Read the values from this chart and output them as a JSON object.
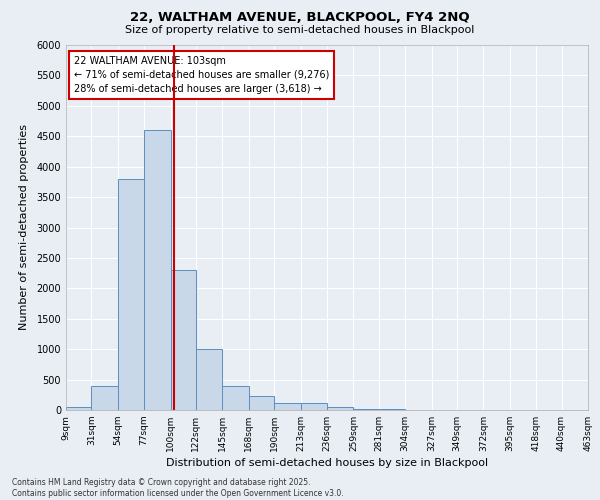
{
  "title1": "22, WALTHAM AVENUE, BLACKPOOL, FY4 2NQ",
  "title2": "Size of property relative to semi-detached houses in Blackpool",
  "xlabel": "Distribution of semi-detached houses by size in Blackpool",
  "ylabel": "Number of semi-detached properties",
  "annotation_title": "22 WALTHAM AVENUE: 103sqm",
  "annotation_line1": "← 71% of semi-detached houses are smaller (9,276)",
  "annotation_line2": "28% of semi-detached houses are larger (3,618) →",
  "property_size": 103,
  "bin_labels": [
    "9sqm",
    "31sqm",
    "54sqm",
    "77sqm",
    "100sqm",
    "122sqm",
    "145sqm",
    "168sqm",
    "190sqm",
    "213sqm",
    "236sqm",
    "259sqm",
    "281sqm",
    "304sqm",
    "327sqm",
    "349sqm",
    "372sqm",
    "395sqm",
    "418sqm",
    "440sqm",
    "463sqm"
  ],
  "bin_edges": [
    9,
    31,
    54,
    77,
    100,
    122,
    145,
    168,
    190,
    213,
    236,
    259,
    281,
    304,
    327,
    349,
    372,
    395,
    418,
    440,
    463
  ],
  "bar_heights": [
    50,
    400,
    3800,
    4600,
    2300,
    1000,
    400,
    230,
    120,
    120,
    50,
    20,
    10,
    5,
    2,
    1,
    0,
    0,
    0,
    0
  ],
  "bar_color": "#c8d8e8",
  "bar_edge_color": "#5a8fc0",
  "vline_color": "#cc0000",
  "vline_x": 103,
  "ylim": [
    0,
    6000
  ],
  "yticks": [
    0,
    500,
    1000,
    1500,
    2000,
    2500,
    3000,
    3500,
    4000,
    4500,
    5000,
    5500,
    6000
  ],
  "bg_color": "#e8eef4",
  "plot_bg_color": "#e8eef4",
  "grid_color": "#ffffff",
  "annotation_box_color": "#ffffff",
  "annotation_box_edge": "#cc0000",
  "footnote1": "Contains HM Land Registry data © Crown copyright and database right 2025.",
  "footnote2": "Contains public sector information licensed under the Open Government Licence v3.0."
}
